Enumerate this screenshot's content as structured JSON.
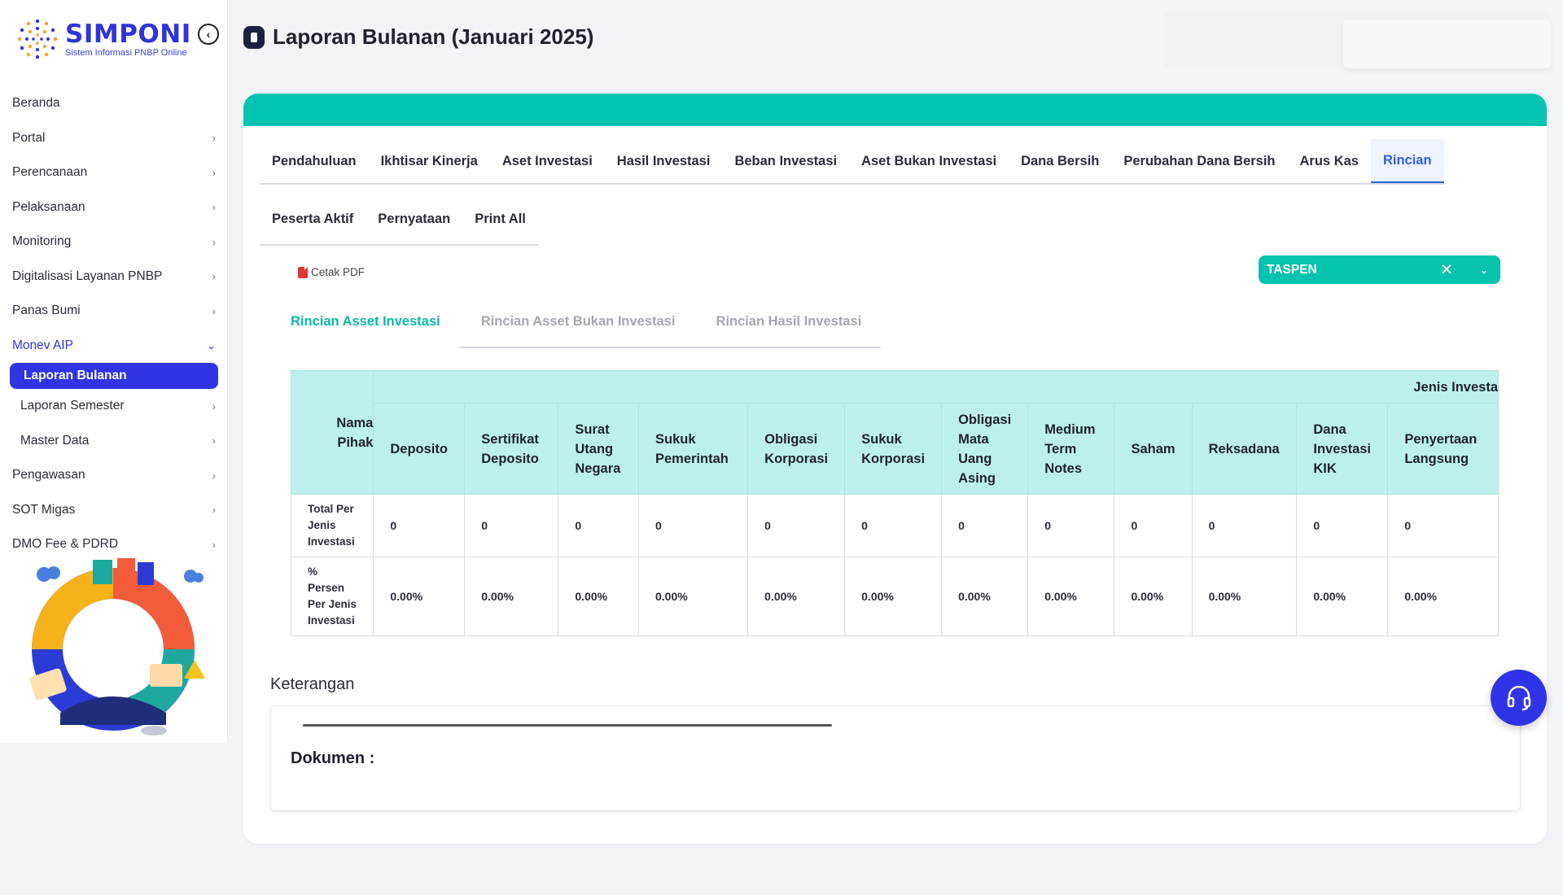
{
  "app": {
    "logo_title": "SIMPONI",
    "logo_subtitle": "Sistem Informasi PNBP Online"
  },
  "page": {
    "title": "Laporan Bulanan (Januari 2025)"
  },
  "sidebar": {
    "items": [
      {
        "label": "Beranda"
      },
      {
        "label": "Portal"
      },
      {
        "label": "Perencanaan"
      },
      {
        "label": "Pelaksanaan"
      },
      {
        "label": "Monitoring"
      },
      {
        "label": "Digitalisasi Layanan PNBP"
      },
      {
        "label": "Panas Bumi"
      },
      {
        "label": "Monev AIP"
      },
      {
        "label": "Laporan Bulanan"
      },
      {
        "label": "Laporan Semester"
      },
      {
        "label": "Master Data"
      },
      {
        "label": "Pengawasan"
      },
      {
        "label": "SOT Migas"
      },
      {
        "label": "DMO Fee & PDRD"
      }
    ]
  },
  "tabs": {
    "row1": [
      "Pendahuluan",
      "Ikhtisar Kinerja",
      "Aset Investasi",
      "Hasil Investasi",
      "Beban Investasi",
      "Aset Bukan Investasi",
      "Dana Bersih",
      "Perubahan Dana Bersih",
      "Arus Kas",
      "Rincian"
    ],
    "row2": [
      "Peserta Aktif",
      "Pernyataan",
      "Print All"
    ],
    "active": "Rincian"
  },
  "toolbar": {
    "cetak_pdf": "Cetak PDF",
    "select_value": "TASPEN"
  },
  "subtabs": {
    "items": [
      "Rincian Asset Investasi",
      "Rincian Asset Bukan Investasi",
      "Rincian Hasil Investasi"
    ],
    "active": "Rincian Asset Investasi"
  },
  "table": {
    "group_header": "Jenis Investa",
    "first_col": "Nama Pihak",
    "columns": [
      "Deposito",
      "Sertifikat Deposito",
      "Surat Utang Negara",
      "Sukuk Pemerintah",
      "Obligasi Korporasi",
      "Sukuk Korporasi",
      "Obligasi Mata Uang Asing",
      "Medium Term Notes",
      "Saham",
      "Reksadana",
      "Dana Investasi KIK",
      "Penyertaan Langsung"
    ],
    "rows": [
      {
        "label": "Total Per Jenis Investasi",
        "values": [
          "0",
          "0",
          "0",
          "0",
          "0",
          "0",
          "0",
          "0",
          "0",
          "0",
          "0",
          "0"
        ]
      },
      {
        "label": "% Persen Per Jenis Investasi",
        "values": [
          "0.00%",
          "0.00%",
          "0.00%",
          "0.00%",
          "0.00%",
          "0.00%",
          "0.00%",
          "0.00%",
          "0.00%",
          "0.00%",
          "0.00%",
          "0.00%"
        ]
      }
    ]
  },
  "keterangan": {
    "label": "Keterangan",
    "dokumen_label": "Dokumen :"
  },
  "colors": {
    "accent": "#2f33d8",
    "teal": "#03c4b0",
    "table_header": "#bdf0ea"
  },
  "icons": [
    "collapse-icon",
    "chevron-right-icon",
    "chevron-down-icon",
    "document-icon",
    "pdf-icon",
    "close-icon",
    "headset-icon"
  ]
}
